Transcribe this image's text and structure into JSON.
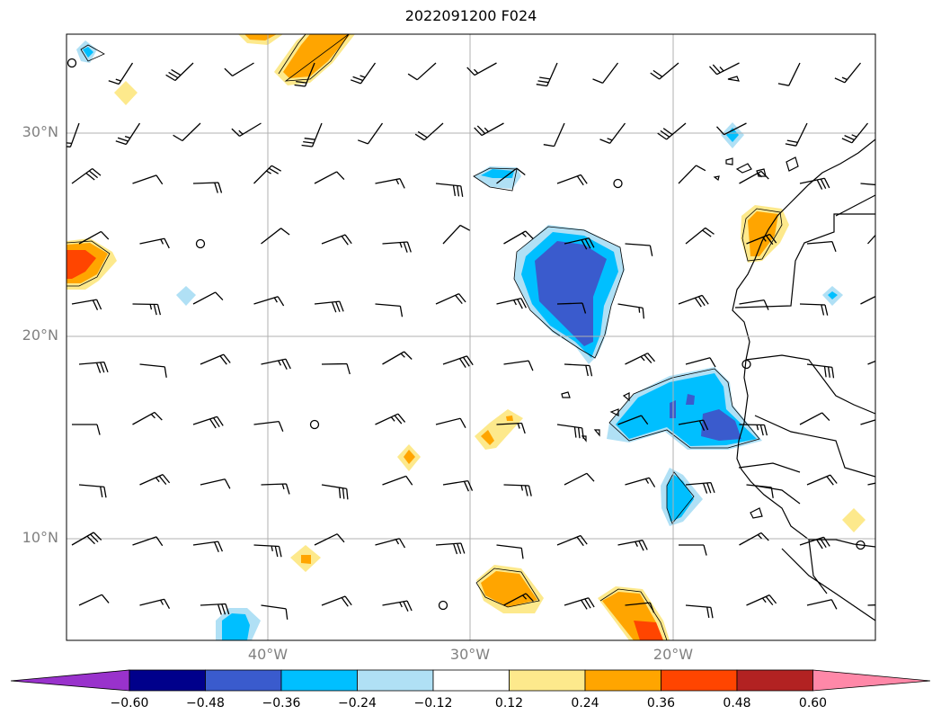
{
  "title": "2022091200 F024",
  "map": {
    "lat_labels": [
      "30°N",
      "20°N",
      "10°N"
    ],
    "lon_labels": [
      "40°W",
      "30°W",
      "20°W"
    ],
    "colors": {
      "coast": "#000000",
      "grid": "#b0b0b0"
    }
  },
  "colorbar": {
    "levels": [
      "−0.60",
      "−0.48",
      "−0.36",
      "−0.24",
      "−0.12",
      "0.12",
      "0.24",
      "0.36",
      "0.48",
      "0.60"
    ],
    "colors": [
      "#9932cc",
      "#00008b",
      "#3a5bcd",
      "#00bfff",
      "#b0e0f5",
      "#ffffff",
      "#fde98c",
      "#ffa500",
      "#ff4500",
      "#b22222",
      "#ff88a8"
    ]
  }
}
